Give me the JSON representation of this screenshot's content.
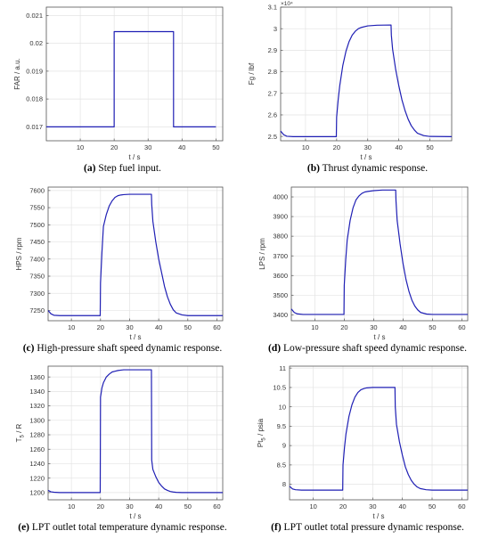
{
  "chart_data": [
    {
      "type": "line",
      "caption_letter": "(a)",
      "caption_text": " Step fuel input.",
      "xlabel": "t / s",
      "ylabel": "FAR / a.u.",
      "ylabel_sub": "",
      "ylabel_post": "",
      "xlim": [
        0,
        52
      ],
      "ylim": [
        0.0165,
        0.0213
      ],
      "xticks": [
        10,
        20,
        30,
        40,
        50
      ],
      "yticks": [
        0.017,
        0.018,
        0.019,
        0.02,
        0.021
      ],
      "ytick_labels": [
        "0.017",
        "0.018",
        "0.019",
        "0.02",
        "0.021"
      ],
      "multiplier": "",
      "color": "#1f1fb4",
      "series": [
        {
          "x": [
            0,
            20,
            20,
            37.5,
            37.5,
            50
          ],
          "y": [
            0.017,
            0.017,
            0.02042,
            0.02042,
            0.017,
            0.017
          ]
        }
      ]
    },
    {
      "type": "line",
      "caption_letter": "(b)",
      "caption_text": " Thrust dynamic response.",
      "xlabel": "t / s",
      "ylabel": "Fg / lbf",
      "ylabel_sub": "",
      "ylabel_post": "",
      "xlim": [
        2,
        57
      ],
      "ylim": [
        24800,
        31000
      ],
      "xticks": [
        10,
        20,
        30,
        40,
        50
      ],
      "yticks": [
        25000,
        26000,
        27000,
        28000,
        29000,
        30000,
        31000
      ],
      "ytick_labels": [
        "2.5",
        "2.6",
        "2.7",
        "2.8",
        "2.9",
        "3",
        "3.1"
      ],
      "multiplier": "×10⁴",
      "color": "#1f1fb4",
      "series": [
        {
          "x": [
            2,
            3,
            4,
            6,
            10,
            19.9,
            20,
            20.5,
            21,
            22,
            23,
            24,
            25,
            26,
            27,
            28,
            30,
            33,
            37.5,
            37.6,
            38,
            39,
            40,
            41,
            42,
            43,
            44,
            45,
            46,
            48,
            50,
            57
          ],
          "y": [
            25250,
            25080,
            25010,
            24990,
            24990,
            24990,
            25900,
            26700,
            27350,
            28300,
            28950,
            29400,
            29700,
            29880,
            30000,
            30060,
            30130,
            30160,
            30170,
            29700,
            29050,
            28100,
            27350,
            26700,
            26200,
            25800,
            25500,
            25300,
            25150,
            25040,
            25000,
            24990
          ]
        }
      ]
    },
    {
      "type": "line",
      "caption_letter": "(c)",
      "caption_text": " High-pressure shaft speed dynamic response.",
      "xlabel": "t / s",
      "ylabel": "HPS / rpm",
      "ylabel_sub": "",
      "ylabel_post": "",
      "xlim": [
        2,
        62
      ],
      "ylim": [
        7220,
        7610
      ],
      "xticks": [
        10,
        20,
        30,
        40,
        50,
        60
      ],
      "yticks": [
        7250,
        7300,
        7350,
        7400,
        7450,
        7500,
        7550,
        7600
      ],
      "ytick_labels": [
        "7250",
        "7300",
        "7350",
        "7400",
        "7450",
        "7500",
        "7550",
        "7600"
      ],
      "multiplier": "",
      "color": "#1f1fb4",
      "series": [
        {
          "x": [
            2,
            3,
            4,
            6,
            10,
            19.9,
            20,
            20.5,
            21,
            22,
            23,
            24,
            25,
            26,
            27,
            28,
            30,
            33,
            37.5,
            37.6,
            38,
            39,
            40,
            41,
            42,
            43,
            44,
            45,
            46,
            48,
            50,
            62
          ],
          "y": [
            7250,
            7240,
            7236,
            7235,
            7235,
            7235,
            7330,
            7420,
            7495,
            7530,
            7555,
            7570,
            7580,
            7585,
            7587,
            7588,
            7589,
            7589,
            7589,
            7560,
            7510,
            7450,
            7400,
            7360,
            7320,
            7290,
            7268,
            7252,
            7243,
            7237,
            7235,
            7235
          ]
        }
      ]
    },
    {
      "type": "line",
      "caption_letter": "(d)",
      "caption_text": " Low-pressure shaft speed dynamic response.",
      "xlabel": "t / s",
      "ylabel": "LPS / rpm",
      "ylabel_sub": "",
      "ylabel_post": "",
      "xlim": [
        2,
        62
      ],
      "ylim": [
        3370,
        4050
      ],
      "xticks": [
        10,
        20,
        30,
        40,
        50,
        60
      ],
      "yticks": [
        3400,
        3500,
        3600,
        3700,
        3800,
        3900,
        4000
      ],
      "ytick_labels": [
        "3400",
        "3500",
        "3600",
        "3700",
        "3800",
        "3900",
        "4000"
      ],
      "multiplier": "",
      "color": "#1f1fb4",
      "series": [
        {
          "x": [
            2,
            3,
            4,
            6,
            10,
            19.9,
            20,
            20.5,
            21,
            22,
            23,
            24,
            25,
            26,
            27,
            28,
            30,
            33,
            37.5,
            37.6,
            38,
            39,
            40,
            41,
            42,
            43,
            44,
            45,
            46,
            48,
            50,
            62
          ],
          "y": [
            3430,
            3412,
            3405,
            3402,
            3402,
            3402,
            3550,
            3680,
            3780,
            3880,
            3945,
            3985,
            4005,
            4018,
            4025,
            4028,
            4032,
            4035,
            4035,
            3980,
            3880,
            3760,
            3660,
            3580,
            3520,
            3475,
            3445,
            3425,
            3412,
            3404,
            3402,
            3402
          ]
        }
      ]
    },
    {
      "type": "line",
      "caption_letter": "(e)",
      "caption_text": " LPT outlet total temperature dynamic response.",
      "xlabel": "t / s",
      "ylabel": "T",
      "ylabel_sub": "5",
      "ylabel_post": " / R",
      "xlim": [
        2,
        62
      ],
      "ylim": [
        1190,
        1375
      ],
      "xticks": [
        10,
        20,
        30,
        40,
        50,
        60
      ],
      "yticks": [
        1200,
        1220,
        1240,
        1260,
        1280,
        1300,
        1320,
        1340,
        1360
      ],
      "ytick_labels": [
        "1200",
        "1220",
        "1240",
        "1260",
        "1280",
        "1300",
        "1320",
        "1340",
        "1360"
      ],
      "multiplier": "",
      "color": "#1f1fb4",
      "series": [
        {
          "x": [
            2,
            3,
            4,
            6,
            10,
            19.9,
            20,
            20.5,
            21,
            22,
            23,
            24,
            25,
            26,
            27,
            28,
            30,
            33,
            37.5,
            37.6,
            38,
            39,
            40,
            41,
            42,
            43,
            44,
            45,
            46,
            48,
            50,
            62
          ],
          "y": [
            1203,
            1201,
            1200.5,
            1200,
            1200,
            1200,
            1332,
            1345,
            1352,
            1360,
            1364,
            1367,
            1368,
            1369,
            1369.5,
            1370,
            1370,
            1370,
            1370,
            1245,
            1232,
            1222,
            1214,
            1209,
            1205,
            1203,
            1201.5,
            1200.8,
            1200.3,
            1200,
            1200,
            1200
          ]
        }
      ]
    },
    {
      "type": "line",
      "caption_letter": "(f)",
      "caption_text": " LPT outlet total pressure dynamic response.",
      "xlabel": "t / s",
      "ylabel": "Pt",
      "ylabel_sub": "5",
      "ylabel_post": " / psia",
      "xlim": [
        2,
        62
      ],
      "ylim": [
        7.6,
        11.05
      ],
      "xticks": [
        10,
        20,
        30,
        40,
        50,
        60
      ],
      "yticks": [
        8,
        8.5,
        9,
        9.5,
        10,
        10.5,
        11
      ],
      "ytick_labels": [
        "8",
        "8.5",
        "9",
        "9.5",
        "10",
        "10.5",
        "11"
      ],
      "multiplier": "",
      "color": "#1f1fb4",
      "series": [
        {
          "x": [
            2,
            3,
            4,
            6,
            10,
            19.9,
            20,
            20.5,
            21,
            22,
            23,
            24,
            25,
            26,
            27,
            28,
            30,
            33,
            37.5,
            37.6,
            38,
            39,
            40,
            41,
            42,
            43,
            44,
            45,
            46,
            48,
            50,
            62
          ],
          "y": [
            7.95,
            7.88,
            7.86,
            7.85,
            7.85,
            7.85,
            8.5,
            8.95,
            9.3,
            9.75,
            10.05,
            10.25,
            10.37,
            10.44,
            10.47,
            10.49,
            10.5,
            10.5,
            10.5,
            10.0,
            9.55,
            9.1,
            8.75,
            8.45,
            8.25,
            8.1,
            8.0,
            7.93,
            7.89,
            7.86,
            7.85,
            7.85
          ]
        }
      ]
    }
  ]
}
